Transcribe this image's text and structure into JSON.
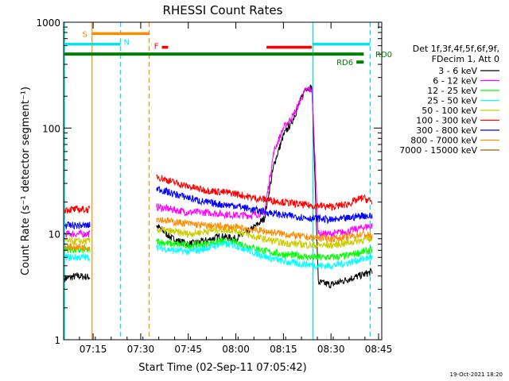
{
  "chart_data": {
    "type": "line",
    "title": "RHESSI Count Rates",
    "xlabel": "Start Time (02-Sep-11 07:05:42)",
    "ylabel": "Count Rate (s⁻¹ detector segment⁻¹)",
    "yscale": "log",
    "ylim": [
      1,
      1000
    ],
    "xlim": [
      "07:05:42",
      "08:46:00"
    ],
    "x_ticks": [
      "07:15",
      "07:30",
      "07:45",
      "08:00",
      "08:15",
      "08:30",
      "08:45"
    ],
    "y_ticks": [
      "1",
      "10",
      "100",
      "1000"
    ],
    "footer": "19-Oct-2021 18:20",
    "legend": {
      "header": [
        "Det 1f,3f,4f,5f,6f,9f,",
        "FDecim 1, Att 0"
      ],
      "placement": "right"
    },
    "series": [
      {
        "name": "3 - 6 keV",
        "color": "#000000",
        "x": [
          "07:06",
          "07:10",
          "07:14",
          "07:35",
          "07:40",
          "07:45",
          "07:50",
          "07:55",
          "08:00",
          "08:05",
          "08:09",
          "08:12",
          "08:15",
          "08:18",
          "08:22",
          "08:24",
          "08:26",
          "08:30",
          "08:35",
          "08:40",
          "08:43"
        ],
        "y": [
          3.8,
          4.0,
          3.9,
          12,
          9,
          8,
          8.5,
          9.5,
          9,
          11,
          14,
          45,
          85,
          120,
          240,
          240,
          3.5,
          3.3,
          3.7,
          4.1,
          4.4
        ]
      },
      {
        "name": "6 - 12 keV",
        "color": "#ff00ff",
        "x": [
          "07:06",
          "07:10",
          "07:14",
          "07:35",
          "07:40",
          "07:45",
          "07:50",
          "07:55",
          "08:00",
          "08:05",
          "08:09",
          "08:12",
          "08:15",
          "08:18",
          "08:22",
          "08:24",
          "08:26",
          "08:30",
          "08:35",
          "08:40",
          "08:43"
        ],
        "y": [
          10,
          10,
          10,
          18,
          17,
          16,
          16,
          15.5,
          15,
          15,
          16,
          60,
          100,
          130,
          230,
          230,
          10,
          10,
          10.5,
          11.5,
          12
        ]
      },
      {
        "name": "12 - 25 keV",
        "color": "#00ff00",
        "x": [
          "07:06",
          "07:10",
          "07:14",
          "07:35",
          "07:40",
          "07:45",
          "07:50",
          "07:55",
          "08:00",
          "08:05",
          "08:10",
          "08:15",
          "08:20",
          "08:24",
          "08:26",
          "08:30",
          "08:35",
          "08:40",
          "08:43"
        ],
        "y": [
          7.2,
          7,
          7,
          8.5,
          8,
          7.8,
          8,
          8.5,
          8.3,
          7.5,
          6.8,
          6.4,
          6.2,
          6,
          6,
          6,
          6.2,
          6.8,
          7
        ]
      },
      {
        "name": "25 - 50 keV",
        "color": "#00ffff",
        "x": [
          "07:06",
          "07:10",
          "07:14",
          "07:35",
          "07:40",
          "07:45",
          "07:50",
          "07:55",
          "08:00",
          "08:05",
          "08:10",
          "08:15",
          "08:20",
          "08:24",
          "08:26",
          "08:30",
          "08:35",
          "08:40",
          "08:43"
        ],
        "y": [
          6,
          6,
          6,
          7.5,
          7,
          6.8,
          7.2,
          8,
          7.8,
          6.8,
          6,
          5.5,
          5.2,
          5.1,
          5,
          5,
          5.3,
          5.8,
          6
        ]
      },
      {
        "name": "50 - 100 keV",
        "color": "#cccc00",
        "x": [
          "07:06",
          "07:10",
          "07:14",
          "07:35",
          "07:40",
          "07:45",
          "07:50",
          "07:55",
          "08:00",
          "08:05",
          "08:10",
          "08:15",
          "08:20",
          "08:24",
          "08:26",
          "08:30",
          "08:35",
          "08:40",
          "08:43"
        ],
        "y": [
          8.5,
          8.5,
          8.5,
          11,
          10.5,
          10,
          10.5,
          11,
          10.8,
          9.5,
          8.8,
          8.2,
          8,
          7.8,
          7.8,
          7.8,
          8.2,
          8.8,
          9
        ]
      },
      {
        "name": "100 - 300 keV",
        "color": "#ff0000",
        "x": [
          "07:06",
          "07:10",
          "07:14",
          "07:35",
          "07:40",
          "07:45",
          "07:50",
          "07:55",
          "08:00",
          "08:05",
          "08:10",
          "08:15",
          "08:20",
          "08:24",
          "08:26",
          "08:30",
          "08:35",
          "08:40",
          "08:43"
        ],
        "y": [
          17,
          17,
          17,
          35,
          31,
          28,
          26,
          25,
          24,
          22,
          21,
          20,
          19,
          18.5,
          18.5,
          18,
          19,
          22,
          20
        ]
      },
      {
        "name": "300 - 800 keV",
        "color": "#0000ff",
        "x": [
          "07:06",
          "07:10",
          "07:14",
          "07:35",
          "07:40",
          "07:45",
          "07:50",
          "07:55",
          "08:00",
          "08:05",
          "08:10",
          "08:15",
          "08:20",
          "08:24",
          "08:26",
          "08:30",
          "08:35",
          "08:40",
          "08:43"
        ],
        "y": [
          12,
          12,
          12,
          27,
          24,
          22,
          20,
          19,
          18.5,
          17,
          16,
          15,
          14.5,
          14,
          14,
          13.5,
          14,
          15,
          14.5
        ]
      },
      {
        "name": "800 - 7000 keV",
        "color": "#ff8c00",
        "x": [
          "07:06",
          "07:10",
          "07:14",
          "07:35",
          "07:40",
          "07:45",
          "07:50",
          "07:55",
          "08:00",
          "08:05",
          "08:10",
          "08:15",
          "08:20",
          "08:24",
          "08:26",
          "08:30",
          "08:35",
          "08:40",
          "08:43"
        ],
        "y": [
          7.5,
          7.5,
          7.5,
          14,
          13,
          12.5,
          12,
          11.8,
          11.5,
          11,
          10.5,
          10,
          9.5,
          9.2,
          9.2,
          9,
          9.3,
          10,
          9.5
        ]
      },
      {
        "name": "7000 - 15000 keV",
        "color": "#8b6914",
        "x": [],
        "y": []
      }
    ],
    "vertical_lines": [
      {
        "x": "07:06:00",
        "color": "#00e5e5",
        "style": "solid"
      },
      {
        "x": "07:14:40",
        "color": "#ff8c00",
        "style": "solid"
      },
      {
        "x": "07:23:40",
        "color": "#00e5e5",
        "style": "dashed"
      },
      {
        "x": "07:32:40",
        "color": "#ff8c00",
        "style": "dashed"
      },
      {
        "x": "08:24:20",
        "color": "#00e5e5",
        "style": "solid"
      },
      {
        "x": "08:42:20",
        "color": "#00e5e5",
        "style": "dashed"
      }
    ],
    "flag_bars": [
      {
        "label": "S",
        "color": "#ff8c00",
        "segments": [
          [
            "07:14:40",
            "07:32:40"
          ]
        ],
        "y": 780
      },
      {
        "label": "N",
        "color": "#00e5e5",
        "segments": [
          [
            "07:06:00",
            "07:23:40"
          ],
          [
            "08:24:20",
            "08:42:20"
          ]
        ],
        "y": 620
      },
      {
        "label": "F",
        "color": "#ff0000",
        "segments": [
          [
            "07:36:40",
            "07:38:40"
          ],
          [
            "08:09:40",
            "08:24:00"
          ]
        ],
        "y": 580
      },
      {
        "label": "RD0",
        "color": "#008000",
        "segments": [
          [
            "07:06:00",
            "08:40:20"
          ]
        ],
        "y": 500
      },
      {
        "label": "RD6",
        "color": "#008000",
        "segments": [
          [
            "08:38:00",
            "08:40:20"
          ]
        ],
        "y": 420
      }
    ]
  }
}
